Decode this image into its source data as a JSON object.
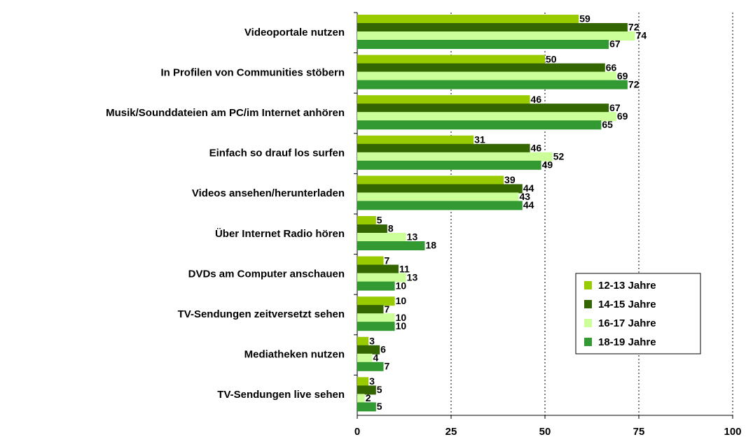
{
  "chart_data": {
    "type": "hbar",
    "categories": [
      "Videoportale nutzen",
      "In Profilen von Communities stöbern",
      "Musik/Sounddateien am PC/im Internet anhören",
      "Einfach so drauf los surfen",
      "Videos ansehen/herunterladen",
      "Über Internet Radio hören",
      "DVDs am Computer anschauen",
      "TV-Sendungen zeitversetzt sehen",
      "Mediatheken nutzen",
      "TV-Sendungen live sehen"
    ],
    "series": [
      {
        "name": "12-13 Jahre",
        "color": "#99cc00",
        "values": [
          59,
          50,
          46,
          31,
          39,
          5,
          7,
          10,
          3,
          3
        ]
      },
      {
        "name": "14-15 Jahre",
        "color": "#336600",
        "values": [
          72,
          66,
          67,
          46,
          44,
          8,
          11,
          7,
          6,
          5
        ]
      },
      {
        "name": "16-17 Jahre",
        "color": "#ccff99",
        "values": [
          74,
          69,
          69,
          52,
          43,
          13,
          13,
          10,
          4,
          2
        ]
      },
      {
        "name": "18-19 Jahre",
        "color": "#339933",
        "values": [
          67,
          72,
          65,
          49,
          44,
          18,
          10,
          10,
          7,
          5
        ]
      }
    ],
    "xlim": [
      0,
      100
    ],
    "xticks": [
      0,
      25,
      50,
      75,
      100
    ],
    "grid": true,
    "legend": "lower right"
  }
}
